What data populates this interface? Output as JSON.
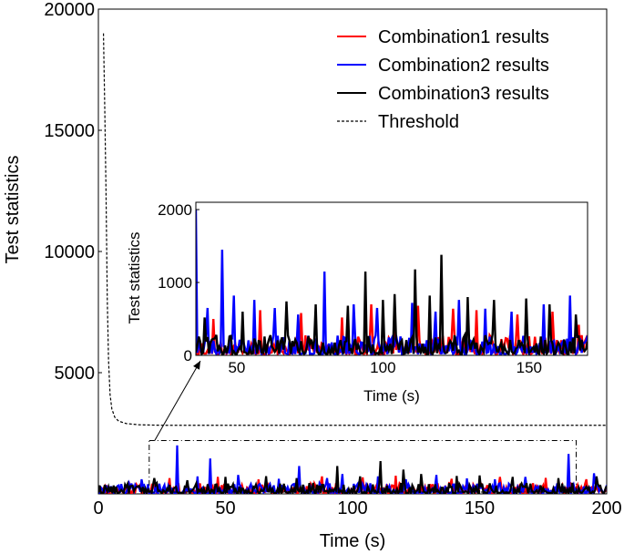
{
  "chart_data": [
    {
      "type": "line",
      "role": "main",
      "xlabel": "Time (s)",
      "ylabel": "Test statistics",
      "xlim": [
        0,
        200
      ],
      "ylim": [
        0,
        20000
      ],
      "xticks": [
        0,
        50,
        100,
        150,
        200
      ],
      "yticks": [
        5000,
        10000,
        15000,
        20000
      ],
      "legend": {
        "placement": "top-right",
        "entries": [
          {
            "label": "Combination1 results",
            "color": "#ff0000",
            "style": "solid"
          },
          {
            "label": "Combination2 results",
            "color": "#0000ff",
            "style": "solid"
          },
          {
            "label": "Combination3 results",
            "color": "#000000",
            "style": "solid"
          },
          {
            "label": "Threshold",
            "color": "#000000",
            "style": "dashed"
          }
        ]
      },
      "series": [
        {
          "name": "Combination1 results",
          "color": "#ff0000",
          "baseline": 180,
          "spread": 420,
          "peaks": [
            [
              12,
              500
            ],
            [
              28,
              650
            ],
            [
              47,
              700
            ],
            [
              63,
              600
            ],
            [
              88,
              720
            ],
            [
              104,
              680
            ],
            [
              117,
              750
            ],
            [
              139,
              620
            ],
            [
              158,
              700
            ],
            [
              176,
              660
            ],
            [
              192,
              600
            ]
          ]
        },
        {
          "name": "Combination2 results",
          "color": "#0000ff",
          "baseline": 170,
          "spread": 420,
          "peaks": [
            [
              8,
              350
            ],
            [
              17,
              600
            ],
            [
              31,
              2000
            ],
            [
              39,
              720
            ],
            [
              44,
              1460
            ],
            [
              55,
              780
            ],
            [
              71,
              620
            ],
            [
              79,
              1150
            ],
            [
              90,
              650
            ],
            [
              96,
              820
            ],
            [
              110,
              720
            ],
            [
              121,
              600
            ],
            [
              133,
              780
            ],
            [
              145,
              640
            ],
            [
              156,
              600
            ],
            [
              168,
              700
            ],
            [
              185,
              1650
            ],
            [
              195,
              850
            ]
          ]
        },
        {
          "name": "Combination3 results",
          "color": "#000000",
          "baseline": 190,
          "spread": 430,
          "peaks": [
            [
              22,
              650
            ],
            [
              35,
              560
            ],
            [
              50,
              700
            ],
            [
              66,
              730
            ],
            [
              78,
              650
            ],
            [
              94,
              1150
            ],
            [
              103,
              720
            ],
            [
              111,
              1350
            ],
            [
              120,
              1000
            ],
            [
              127,
              820
            ],
            [
              141,
              740
            ],
            [
              150,
              760
            ],
            [
              163,
              700
            ],
            [
              181,
              650
            ],
            [
              196,
              720
            ]
          ]
        },
        {
          "name": "Threshold",
          "color": "#000000",
          "style": "dashed",
          "points": [
            [
              2,
              19000
            ],
            [
              2.5,
              16000
            ],
            [
              3,
              12500
            ],
            [
              3.5,
              8000
            ],
            [
              4,
              5500
            ],
            [
              4.6,
              4100
            ],
            [
              5.3,
              3500
            ],
            [
              6.5,
              3150
            ],
            [
              8,
              3000
            ],
            [
              11,
              2900
            ],
            [
              16,
              2850
            ],
            [
              25,
              2830
            ],
            [
              200,
              2830
            ]
          ]
        }
      ],
      "zoom_box": {
        "x_range": [
          20,
          188
        ],
        "y_range": [
          0,
          2200
        ]
      }
    },
    {
      "type": "line",
      "role": "inset",
      "xlabel": "Time (s)",
      "ylabel": "Test statistics",
      "xlim": [
        36,
        170
      ],
      "ylim": [
        0,
        2100
      ],
      "xticks": [
        50,
        100,
        150
      ],
      "yticks": [
        0,
        1000,
        2000
      ],
      "series": [
        {
          "name": "Combination1 results",
          "color": "#ff0000",
          "baseline": 120,
          "spread": 260,
          "peaks": [
            [
              42,
              500
            ],
            [
              58,
              620
            ],
            [
              72,
              580
            ],
            [
              86,
              520
            ],
            [
              96,
              700
            ],
            [
              104,
              600
            ],
            [
              112,
              680
            ],
            [
              124,
              640
            ],
            [
              132,
              620
            ],
            [
              146,
              560
            ],
            [
              158,
              600
            ],
            [
              167,
              420
            ]
          ]
        },
        {
          "name": "Combination2 results",
          "color": "#0000ff",
          "baseline": 110,
          "spread": 260,
          "peaks": [
            [
              36,
              2000
            ],
            [
              40,
              650
            ],
            [
              45,
              1450
            ],
            [
              49,
              820
            ],
            [
              56,
              760
            ],
            [
              63,
              650
            ],
            [
              71,
              560
            ],
            [
              80,
              1150
            ],
            [
              90,
              700
            ],
            [
              98,
              650
            ],
            [
              110,
              720
            ],
            [
              118,
              600
            ],
            [
              126,
              760
            ],
            [
              135,
              640
            ],
            [
              144,
              600
            ],
            [
              155,
              700
            ],
            [
              164,
              820
            ]
          ]
        },
        {
          "name": "Combination3 results",
          "color": "#000000",
          "baseline": 130,
          "spread": 270,
          "peaks": [
            [
              39,
              520
            ],
            [
              52,
              600
            ],
            [
              67,
              740
            ],
            [
              77,
              700
            ],
            [
              88,
              680
            ],
            [
              94,
              1150
            ],
            [
              100,
              760
            ],
            [
              104,
              840
            ],
            [
              111,
              1180
            ],
            [
              116,
              820
            ],
            [
              120,
              1380
            ],
            [
              129,
              800
            ],
            [
              138,
              760
            ],
            [
              149,
              780
            ],
            [
              157,
              700
            ],
            [
              166,
              560
            ]
          ]
        }
      ]
    }
  ]
}
